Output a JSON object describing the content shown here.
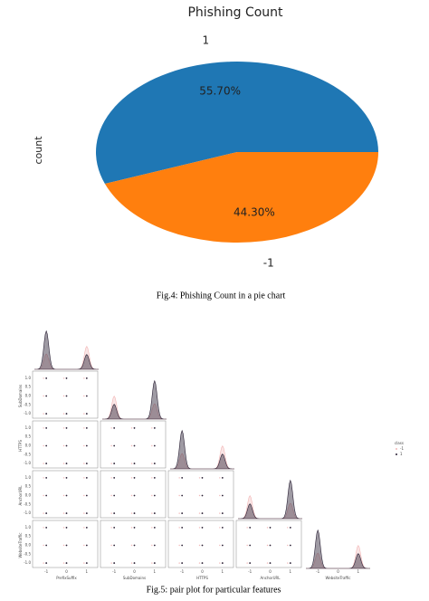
{
  "chart_data": [
    {
      "type": "pie",
      "title": "Phishing Count",
      "ylabel": "count",
      "categories": [
        "1",
        "-1"
      ],
      "values": [
        55.7,
        44.3
      ],
      "value_labels": [
        "55.70%",
        "44.30%"
      ],
      "colors": [
        "#1f77b4",
        "#ff7f0e"
      ],
      "caption": "Fig.4: Phishing Count in a pie chart"
    },
    {
      "type": "pairplot",
      "variables": [
        "PrefixSuffix",
        "SubDomains",
        "HTTPS",
        "AnchorURL",
        "WebsiteTraffic"
      ],
      "xlim": [
        -1.5,
        1.5
      ],
      "ylim": [
        -1.2,
        1.2
      ],
      "xticks": [
        -1,
        0,
        1
      ],
      "yticks": [
        {
          "value": -1,
          "label": "-1.0"
        },
        {
          "value": -0.5,
          "label": "-0.5"
        },
        {
          "value": 0,
          "label": "0.0"
        },
        {
          "value": 0.5,
          "label": "0.5"
        },
        {
          "value": 1,
          "label": "1.0"
        }
      ],
      "legend_title": "class",
      "legend": [
        {
          "name": "-1",
          "color": "#f2b6b6"
        },
        {
          "name": "1",
          "color": "#2b2135"
        }
      ],
      "caption": "Fig.5: pair plot for particular features"
    }
  ]
}
